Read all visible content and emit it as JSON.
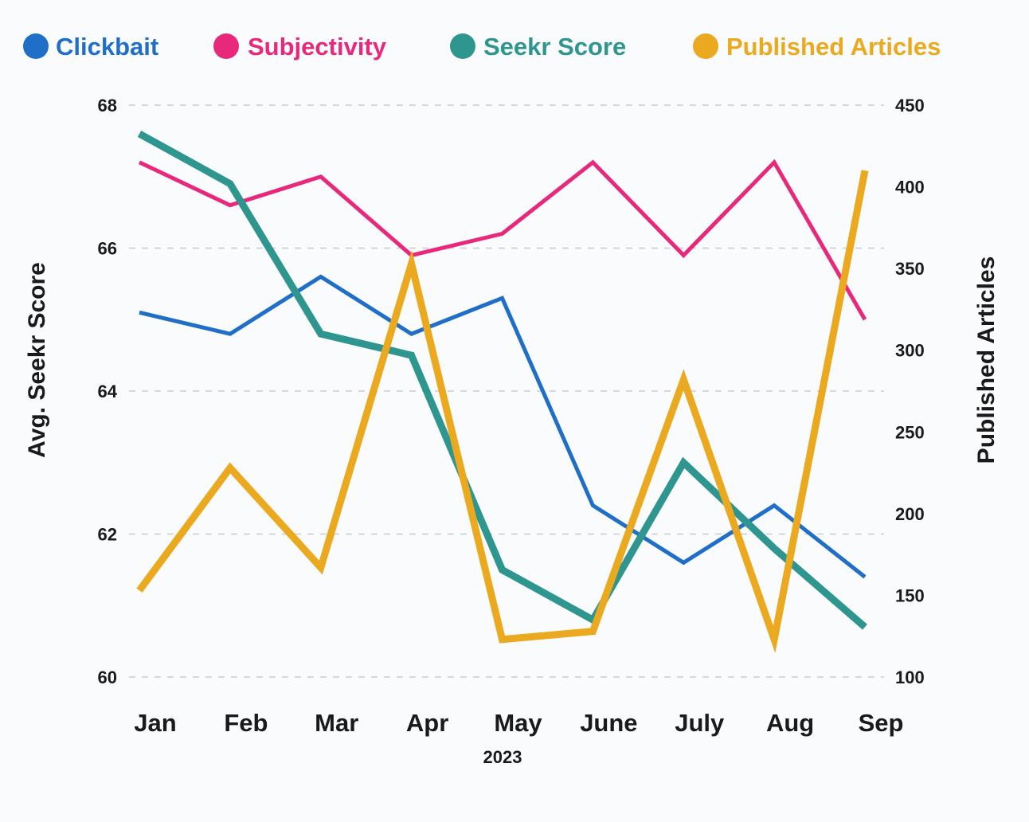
{
  "chart_data": {
    "type": "line",
    "categories": [
      "Jan",
      "Feb",
      "Mar",
      "Apr",
      "May",
      "June",
      "July",
      "Aug",
      "Sep"
    ],
    "x_sublabel": "2023",
    "ylabel_left": "Avg. Seekr Score",
    "ylabel_right": "Published Articles",
    "ylim_left": [
      60,
      68
    ],
    "yticks_left": [
      "60",
      "62",
      "64",
      "66",
      "68"
    ],
    "ylim_right": [
      100,
      450
    ],
    "yticks_right": [
      "100",
      "150",
      "200",
      "250",
      "300",
      "350",
      "400",
      "450"
    ],
    "grid": "horizontal dashed",
    "legend_position": "top",
    "series": [
      {
        "name": "Clickbait",
        "axis": "left",
        "color": "#1f6fc9",
        "values": [
          65.1,
          64.8,
          65.6,
          64.8,
          65.3,
          62.4,
          61.6,
          62.4,
          61.4
        ]
      },
      {
        "name": "Subjectivity",
        "axis": "left",
        "color": "#e8287b",
        "values": [
          67.2,
          66.6,
          67.0,
          65.9,
          66.2,
          67.2,
          65.9,
          67.2,
          65.0
        ]
      },
      {
        "name": "Seekr Score",
        "axis": "left",
        "color": "#2e968f",
        "values": [
          67.6,
          66.9,
          64.8,
          64.5,
          61.5,
          60.8,
          63.0,
          61.8,
          60.7
        ]
      },
      {
        "name": "Published Articles",
        "axis": "right",
        "color": "#eaa91e",
        "values": [
          153,
          228,
          167,
          353,
          123,
          128,
          282,
          123,
          410
        ]
      }
    ]
  }
}
